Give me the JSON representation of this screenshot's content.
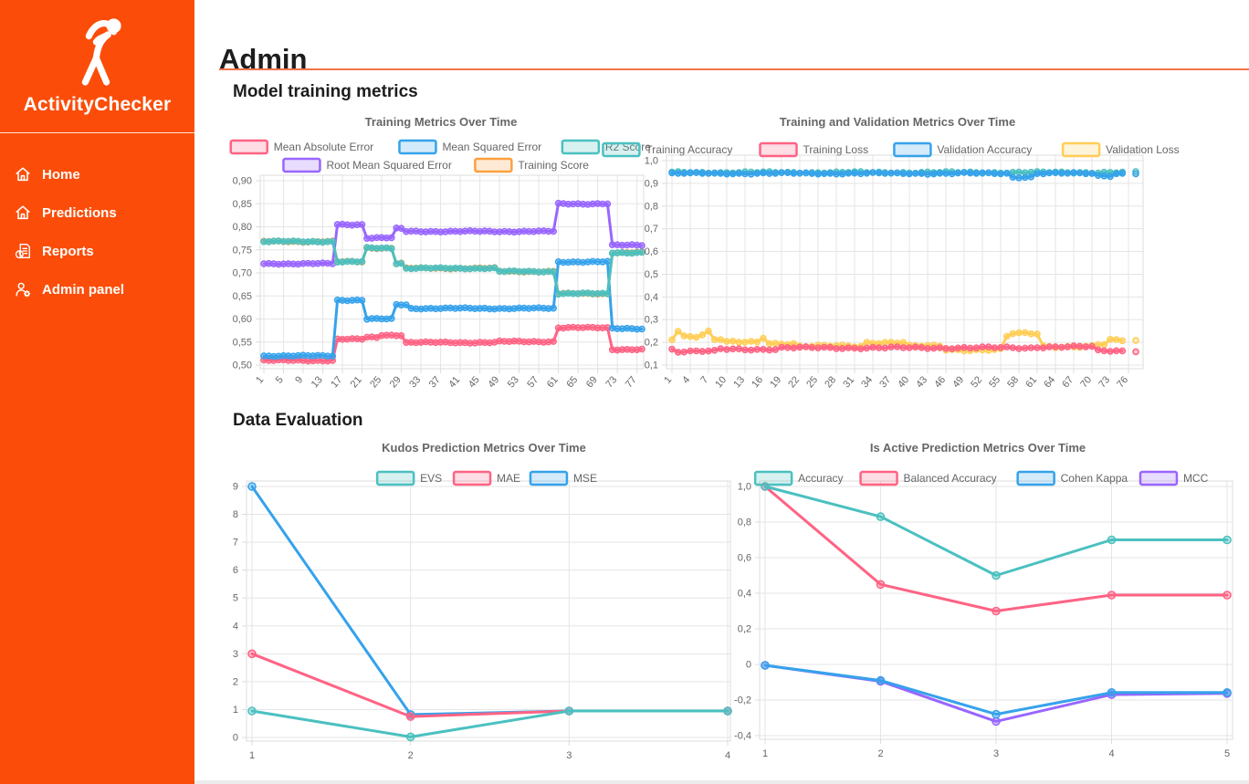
{
  "app": {
    "brand": "ActivityChecker"
  },
  "sidebar": {
    "items": [
      {
        "label": "Home",
        "icon": "home-icon"
      },
      {
        "label": "Predictions",
        "icon": "home-icon"
      },
      {
        "label": "Reports",
        "icon": "report-icon"
      },
      {
        "label": "Admin panel",
        "icon": "user-gear-icon"
      }
    ]
  },
  "page": {
    "title": "Admin",
    "section1": "Model training metrics",
    "section2": "Data Evaluation"
  },
  "colors": {
    "sidebar_orange": "#fb4d09",
    "rule_orange": "#f2744e",
    "teal": "#4BC0C0",
    "pink": "#FF6384",
    "blue": "#36A2EB",
    "purple": "#9966FF",
    "yellow": "#FFCE56",
    "orange": "#FF9F40",
    "tick_text": "#666666",
    "grid": "#e5e5e5"
  },
  "chart_data": [
    {
      "type": "line",
      "slug": "training-metrics",
      "title": "Training Metrics Over Time",
      "x_count": 78,
      "x_tick_labels": [
        "1",
        "5",
        "9",
        "13",
        "17",
        "21",
        "25",
        "29",
        "33",
        "37",
        "41",
        "45",
        "49",
        "53",
        "57",
        "61",
        "65",
        "69",
        "73",
        "77"
      ],
      "x_tick_values": [
        1,
        5,
        9,
        13,
        17,
        21,
        25,
        29,
        33,
        37,
        41,
        45,
        49,
        53,
        57,
        61,
        65,
        69,
        73,
        77
      ],
      "y_ticks": [
        {
          "label": "0,90",
          "value": 0.9
        },
        {
          "label": "0,85",
          "value": 0.85
        },
        {
          "label": "0,80",
          "value": 0.8
        },
        {
          "label": "0,75",
          "value": 0.75
        },
        {
          "label": "0,70",
          "value": 0.7
        },
        {
          "label": "0,65",
          "value": 0.65
        },
        {
          "label": "0,60",
          "value": 0.6
        },
        {
          "label": "0,55",
          "value": 0.55
        },
        {
          "label": "0,50",
          "value": 0.5
        }
      ],
      "y_min": 0.5,
      "y_max": 0.9,
      "legend_rows": [
        [
          0,
          1,
          2
        ],
        [
          3,
          4
        ]
      ],
      "draw_order": [
        4,
        0,
        1,
        3,
        2
      ],
      "marker_r": 3,
      "rotate_x_labels": true,
      "series": [
        {
          "name": "Mean Absolute Error",
          "color": "#FF6384",
          "noise": 0.0015,
          "segments": [
            [
              1,
              15,
              0.51
            ],
            [
              16,
              21,
              0.556
            ],
            [
              22,
              24,
              0.56
            ],
            [
              25,
              29,
              0.565
            ],
            [
              30,
              48,
              0.549
            ],
            [
              49,
              60,
              0.551
            ],
            [
              61,
              71,
              0.581
            ],
            [
              72,
              78,
              0.534
            ]
          ]
        },
        {
          "name": "Mean Squared Error",
          "color": "#36A2EB",
          "noise": 0.0015,
          "segments": [
            [
              1,
              15,
              0.52
            ],
            [
              16,
              21,
              0.641
            ],
            [
              22,
              27,
              0.6
            ],
            [
              28,
              30,
              0.631
            ],
            [
              31,
              60,
              0.623
            ],
            [
              61,
              71,
              0.724
            ],
            [
              72,
              78,
              0.579
            ]
          ]
        },
        {
          "name": "R2 Score",
          "color": "#4BC0C0",
          "noise": 0.0015,
          "segments": [
            [
              1,
              15,
              0.768
            ],
            [
              16,
              21,
              0.724
            ],
            [
              22,
              27,
              0.754
            ],
            [
              28,
              29,
              0.721
            ],
            [
              30,
              48,
              0.71
            ],
            [
              49,
              60,
              0.703
            ],
            [
              61,
              71,
              0.655
            ],
            [
              72,
              78,
              0.744
            ]
          ]
        },
        {
          "name": "Root Mean Squared Error",
          "color": "#9966FF",
          "noise": 0.0015,
          "segments": [
            [
              1,
              15,
              0.72
            ],
            [
              16,
              21,
              0.805
            ],
            [
              22,
              27,
              0.776
            ],
            [
              28,
              29,
              0.796
            ],
            [
              30,
              60,
              0.79
            ],
            [
              61,
              71,
              0.85
            ],
            [
              72,
              78,
              0.76
            ]
          ]
        },
        {
          "name": "Training Score",
          "color": "#FF9F40",
          "noise": 0.0015,
          "segments": [
            [
              1,
              15,
              0.768
            ],
            [
              16,
              21,
              0.724
            ],
            [
              22,
              27,
              0.754
            ],
            [
              28,
              29,
              0.721
            ],
            [
              30,
              48,
              0.71
            ],
            [
              49,
              60,
              0.703
            ],
            [
              61,
              71,
              0.655
            ],
            [
              72,
              78,
              0.744
            ]
          ]
        }
      ]
    },
    {
      "type": "line",
      "slug": "training-validation-metrics",
      "title": "Training and Validation Metrics Over Time",
      "x_count": 76,
      "x_tick_labels": [
        "1",
        "4",
        "7",
        "10",
        "13",
        "16",
        "19",
        "22",
        "25",
        "28",
        "31",
        "34",
        "37",
        "40",
        "43",
        "46",
        "49",
        "52",
        "55",
        "58",
        "61",
        "64",
        "67",
        "70",
        "73",
        "76"
      ],
      "x_tick_values": [
        1,
        4,
        7,
        10,
        13,
        16,
        19,
        22,
        25,
        28,
        31,
        34,
        37,
        40,
        43,
        46,
        49,
        52,
        55,
        58,
        61,
        64,
        67,
        70,
        73,
        76
      ],
      "y_ticks": [
        {
          "label": "1,0",
          "value": 1.0
        },
        {
          "label": "0,9",
          "value": 0.9
        },
        {
          "label": "0,8",
          "value": 0.8
        },
        {
          "label": "0,7",
          "value": 0.7
        },
        {
          "label": "0,6",
          "value": 0.6
        },
        {
          "label": "0,5",
          "value": 0.5
        },
        {
          "label": "0,4",
          "value": 0.4
        },
        {
          "label": "0,3",
          "value": 0.3
        },
        {
          "label": "0,2",
          "value": 0.2
        },
        {
          "label": "0,1",
          "value": 0.1
        }
      ],
      "y_min": 0.1,
      "y_max": 1.0,
      "legend_rows": [
        [
          0,
          1,
          2,
          3
        ]
      ],
      "draw_order": [
        3,
        1,
        0,
        2
      ],
      "marker_r": 3,
      "rotate_x_labels": true,
      "series": [
        {
          "name": "Training Accuracy",
          "color": "#4BC0C0",
          "noise": 0.004,
          "detach_last": true,
          "segments": [
            [
              1,
              76,
              0.948
            ]
          ]
        },
        {
          "name": "Training Loss",
          "color": "#FF6384",
          "noise": 0.005,
          "detach_last": true,
          "segments": [
            [
              1,
              1,
              0.17
            ],
            [
              2,
              8,
              0.16
            ],
            [
              9,
              18,
              0.17
            ],
            [
              19,
              60,
              0.176
            ],
            [
              61,
              70,
              0.18
            ],
            [
              71,
              76,
              0.163
            ]
          ]
        },
        {
          "name": "Validation Accuracy",
          "color": "#36A2EB",
          "noise": 0.004,
          "detach_last": true,
          "segments": [
            [
              1,
              56,
              0.944
            ],
            [
              57,
              60,
              0.928
            ],
            [
              61,
              70,
              0.944
            ],
            [
              71,
              73,
              0.934
            ],
            [
              74,
              76,
              0.944
            ]
          ]
        },
        {
          "name": "Validation Loss",
          "color": "#FFCE56",
          "noise": 0.006,
          "detach_last": true,
          "segments": [
            [
              1,
              1,
              0.215
            ],
            [
              2,
              2,
              0.252
            ],
            [
              3,
              5,
              0.228
            ],
            [
              6,
              6,
              0.235
            ],
            [
              7,
              7,
              0.248
            ],
            [
              8,
              9,
              0.213
            ],
            [
              10,
              15,
              0.2
            ],
            [
              16,
              16,
              0.222
            ],
            [
              17,
              21,
              0.196
            ],
            [
              22,
              32,
              0.183
            ],
            [
              33,
              39,
              0.2
            ],
            [
              40,
              45,
              0.183
            ],
            [
              46,
              55,
              0.168
            ],
            [
              56,
              56,
              0.225
            ],
            [
              57,
              61,
              0.238
            ],
            [
              62,
              70,
              0.182
            ],
            [
              71,
              72,
              0.19
            ],
            [
              73,
              76,
              0.208
            ]
          ]
        }
      ]
    },
    {
      "type": "line",
      "slug": "kudos-prediction",
      "title": "Kudos Prediction Metrics Over Time",
      "x_count": 4,
      "x_tick_labels": [
        "1",
        "2",
        "3",
        "4"
      ],
      "x_tick_values": [
        1,
        2,
        3,
        4
      ],
      "y_ticks": [
        {
          "label": "9",
          "value": 9
        },
        {
          "label": "8",
          "value": 8
        },
        {
          "label": "7",
          "value": 7
        },
        {
          "label": "6",
          "value": 6
        },
        {
          "label": "5",
          "value": 5
        },
        {
          "label": "4",
          "value": 4
        },
        {
          "label": "3",
          "value": 3
        },
        {
          "label": "2",
          "value": 2
        },
        {
          "label": "1",
          "value": 1
        },
        {
          "label": "0",
          "value": 0
        }
      ],
      "y_min": 0,
      "y_max": 9,
      "legend_rows": [
        [
          0,
          1,
          2
        ]
      ],
      "draw_order": [
        2,
        1,
        0
      ],
      "marker_r": 4,
      "rotate_x_labels": false,
      "series": [
        {
          "name": "EVS",
          "color": "#4BC0C0",
          "x": [
            1,
            2,
            3,
            4
          ],
          "values": [
            0.95,
            0.02,
            0.95,
            0.95
          ]
        },
        {
          "name": "MAE",
          "color": "#FF6384",
          "x": [
            1,
            2,
            3,
            4
          ],
          "values": [
            3.0,
            0.75,
            0.95,
            0.95
          ]
        },
        {
          "name": "MSE",
          "color": "#36A2EB",
          "x": [
            1,
            2,
            3,
            4
          ],
          "values": [
            9.0,
            0.82,
            0.95,
            0.95
          ]
        }
      ]
    },
    {
      "type": "line",
      "slug": "is-active-prediction",
      "title": "Is Active Prediction Metrics Over Time",
      "x_count": 5,
      "x_tick_labels": [
        "1",
        "2",
        "3",
        "4",
        "5"
      ],
      "x_tick_values": [
        1,
        2,
        3,
        4,
        5
      ],
      "y_ticks": [
        {
          "label": "1,0",
          "value": 1.0
        },
        {
          "label": "0,8",
          "value": 0.8
        },
        {
          "label": "0,6",
          "value": 0.6
        },
        {
          "label": "0,4",
          "value": 0.4
        },
        {
          "label": "0,2",
          "value": 0.2
        },
        {
          "label": "0",
          "value": 0
        },
        {
          "label": "-0,2",
          "value": -0.2
        },
        {
          "label": "-0,4",
          "value": -0.4
        }
      ],
      "y_min": -0.4,
      "y_max": 1.0,
      "legend_rows": [
        [
          0,
          1,
          2,
          3
        ]
      ],
      "draw_order": [
        1,
        0,
        3,
        2
      ],
      "marker_r": 4,
      "rotate_x_labels": false,
      "series": [
        {
          "name": "Accuracy",
          "color": "#4BC0C0",
          "x": [
            1,
            2,
            3,
            4,
            5
          ],
          "values": [
            1.0,
            0.83,
            0.5,
            0.7,
            0.7
          ]
        },
        {
          "name": "Balanced Accuracy",
          "color": "#FF6384",
          "x": [
            1,
            2,
            3,
            4,
            5
          ],
          "values": [
            1.0,
            0.45,
            0.3,
            0.39,
            0.39
          ]
        },
        {
          "name": "Cohen Kappa",
          "color": "#36A2EB",
          "x": [
            1,
            2,
            3,
            4,
            5
          ],
          "values": [
            -0.005,
            -0.09,
            -0.28,
            -0.158,
            -0.158
          ]
        },
        {
          "name": "MCC",
          "color": "#9966FF",
          "x": [
            1,
            2,
            3,
            4,
            5
          ],
          "values": [
            -0.005,
            -0.095,
            -0.32,
            -0.17,
            -0.163
          ]
        }
      ]
    }
  ]
}
